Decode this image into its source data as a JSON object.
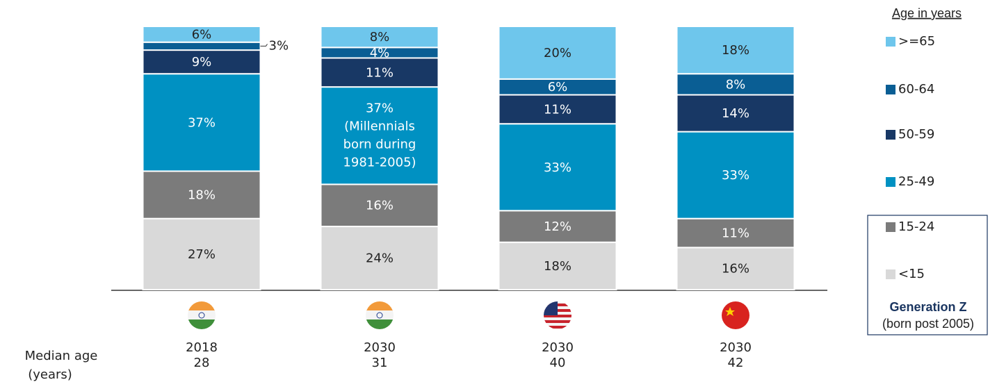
{
  "chart_data": {
    "type": "stacked_bar",
    "categories": [
      "2018",
      "2030",
      "2030",
      "2030"
    ],
    "median_age": [
      28,
      31,
      40,
      42
    ],
    "median_age_label": [
      "Median age",
      "(years)"
    ],
    "legend_title": "Age in years",
    "series": [
      {
        "name": "<15",
        "color": "#d9d9d9",
        "text_color": "#222222",
        "values": [
          27,
          24,
          18,
          16
        ],
        "value_labels": [
          "27%",
          "24%",
          "18%",
          "16%"
        ]
      },
      {
        "name": "15-24",
        "color": "#7b7b7b",
        "text_color": "#ffffff",
        "values": [
          18,
          16,
          12,
          11
        ],
        "value_labels": [
          "18%",
          "16%",
          "12%",
          "11%"
        ]
      },
      {
        "name": "25-49",
        "color": "#0091c2",
        "text_color": "#ffffff",
        "values": [
          37,
          37,
          33,
          33
        ],
        "value_labels": [
          "37%",
          "37%",
          "33%",
          "33%"
        ]
      },
      {
        "name": "50-59",
        "color": "#183865",
        "text_color": "#ffffff",
        "values": [
          9,
          11,
          11,
          14
        ],
        "value_labels": [
          "9%",
          "11%",
          "11%",
          "14%"
        ]
      },
      {
        "name": "60-64",
        "color": "#0a5e94",
        "text_color": "#ffffff",
        "values": [
          3,
          4,
          6,
          8
        ],
        "value_labels": [
          "3%",
          "4%",
          "6%",
          "8%"
        ]
      },
      {
        "name": ">=65",
        "color": "#6ec6ec",
        "text_color": "#222222",
        "values": [
          6,
          8,
          20,
          18
        ],
        "value_labels": [
          "6%",
          "8%",
          "20%",
          "18%"
        ]
      }
    ],
    "annotation": {
      "series": 2,
      "index": 1,
      "lines": [
        "(Millennials",
        "born during",
        "1981-2005)"
      ]
    },
    "generation_box": {
      "title": "Generation Z",
      "note": "(born post 2005)"
    }
  }
}
